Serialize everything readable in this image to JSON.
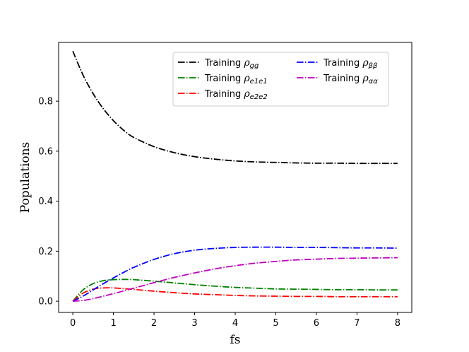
{
  "chart_data": {
    "type": "line",
    "title": "",
    "xlabel": "fs",
    "ylabel": "Populations",
    "xlim": [
      -0.35,
      8.35
    ],
    "ylim": [
      -0.045,
      1.035
    ],
    "xticks": [
      0,
      1,
      2,
      3,
      4,
      5,
      6,
      7,
      8
    ],
    "yticks": [
      0.0,
      0.2,
      0.4,
      0.6,
      0.8
    ],
    "xtick_labels": [
      "0",
      "1",
      "2",
      "3",
      "4",
      "5",
      "6",
      "7",
      "8"
    ],
    "ytick_labels": [
      "0.0",
      "0.2",
      "0.4",
      "0.6",
      "0.8"
    ],
    "grid": false,
    "legend_position": "top-right",
    "legend_columns": 2,
    "line_style": "dash-dot",
    "x": [
      0,
      0.25,
      0.5,
      0.75,
      1,
      1.25,
      1.5,
      2,
      2.5,
      3,
      3.5,
      4,
      4.5,
      5,
      5.5,
      6,
      6.5,
      7,
      7.5,
      8
    ],
    "series": [
      {
        "name": "Training ρgg",
        "label_prefix": "Training ",
        "label_symbol": "ρ",
        "label_sub": "gg",
        "color": "#000000",
        "values": [
          1.0,
          0.905,
          0.83,
          0.77,
          0.722,
          0.684,
          0.655,
          0.618,
          0.594,
          0.578,
          0.568,
          0.561,
          0.557,
          0.555,
          0.553,
          0.552,
          0.552,
          0.551,
          0.551,
          0.551
        ]
      },
      {
        "name": "Training ρe1e1",
        "label_prefix": "Training ",
        "label_symbol": "ρ",
        "label_sub": "e1e1",
        "color": "#008000",
        "values": [
          0.0,
          0.045,
          0.07,
          0.082,
          0.086,
          0.087,
          0.086,
          0.08,
          0.073,
          0.066,
          0.06,
          0.055,
          0.052,
          0.049,
          0.048,
          0.047,
          0.046,
          0.046,
          0.045,
          0.045
        ]
      },
      {
        "name": "Training ρe2e2",
        "label_prefix": "Training ",
        "label_symbol": "ρ",
        "label_sub": "e2e2",
        "color": "#ff0000",
        "values": [
          0.0,
          0.032,
          0.048,
          0.053,
          0.053,
          0.05,
          0.047,
          0.04,
          0.034,
          0.029,
          0.026,
          0.023,
          0.021,
          0.02,
          0.019,
          0.019,
          0.018,
          0.018,
          0.018,
          0.018
        ]
      },
      {
        "name": "Training ρββ",
        "label_prefix": "Training ",
        "label_symbol": "ρ",
        "label_sub": "ββ",
        "color": "#0000ff",
        "values": [
          0.0,
          0.02,
          0.045,
          0.07,
          0.093,
          0.115,
          0.135,
          0.167,
          0.19,
          0.204,
          0.211,
          0.215,
          0.216,
          0.216,
          0.215,
          0.215,
          0.214,
          0.213,
          0.213,
          0.212
        ]
      },
      {
        "name": "Training ραα",
        "label_prefix": "Training ",
        "label_symbol": "ρ",
        "label_sub": "αα",
        "color": "#bf00bf",
        "values": [
          0.0,
          0.003,
          0.01,
          0.02,
          0.03,
          0.041,
          0.052,
          0.074,
          0.095,
          0.113,
          0.129,
          0.142,
          0.152,
          0.159,
          0.165,
          0.168,
          0.171,
          0.172,
          0.173,
          0.174
        ]
      }
    ]
  }
}
